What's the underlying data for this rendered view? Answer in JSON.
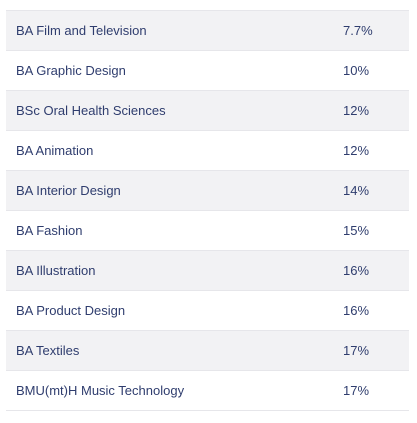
{
  "table": {
    "rows": [
      {
        "course": "BA Film and Television",
        "rate": "7.7%"
      },
      {
        "course": "BA Graphic Design",
        "rate": "10%"
      },
      {
        "course": "BSc Oral Health Sciences",
        "rate": "12%"
      },
      {
        "course": "BA Animation",
        "rate": "12%"
      },
      {
        "course": "BA Interior Design",
        "rate": "14%"
      },
      {
        "course": "BA Fashion",
        "rate": "15%"
      },
      {
        "course": "BA Illustration",
        "rate": "16%"
      },
      {
        "course": "BA Product Design",
        "rate": "16%"
      },
      {
        "course": "BA Textiles",
        "rate": "17%"
      },
      {
        "course": "BMU(mt)H Music Technology",
        "rate": "17%"
      }
    ]
  },
  "colors": {
    "text": "#2f3d6e",
    "stripe": "#f2f2f4",
    "border": "#e6e6ea"
  }
}
